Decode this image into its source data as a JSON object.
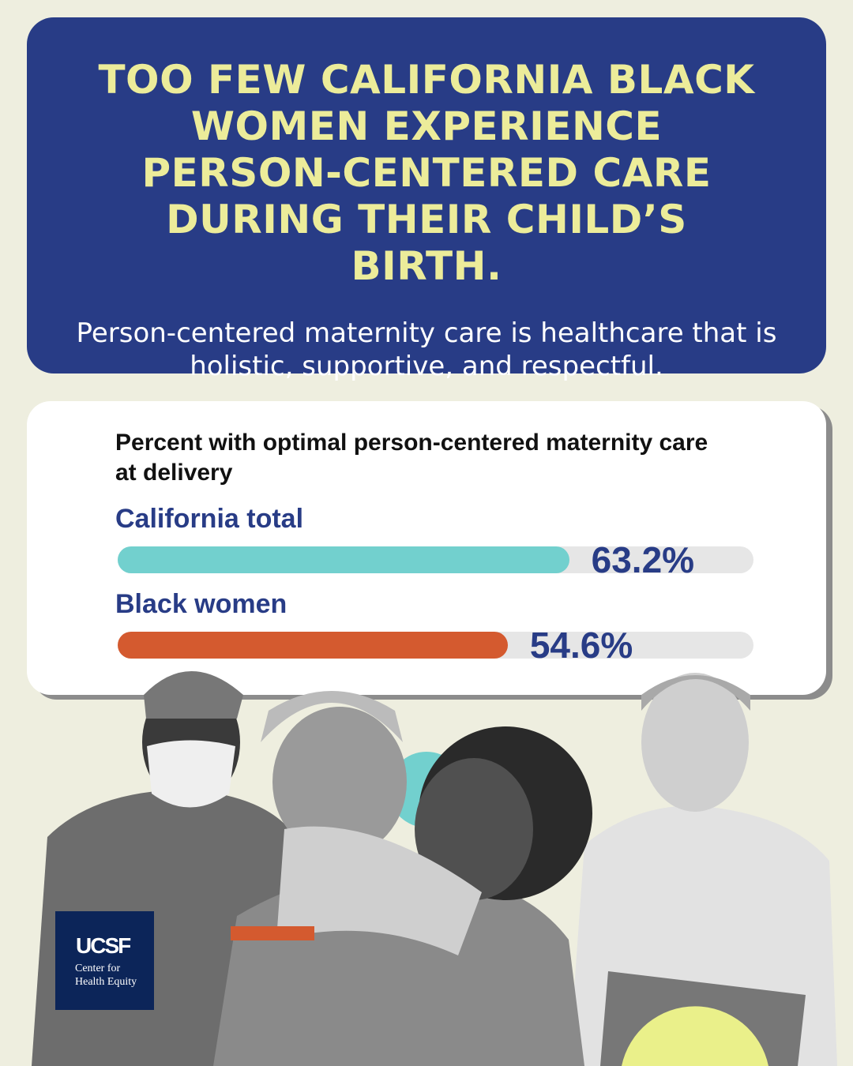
{
  "header": {
    "title": "TOO FEW CALIFORNIA BLACK WOMEN EXPERIENCE PERSON-CENTERED CARE DURING THEIR CHILD’S BIRTH.",
    "subtitle": "Person-centered maternity care is healthcare that is holistic, supportive, and respectful."
  },
  "chart_data": {
    "type": "bar",
    "orientation": "horizontal",
    "title": "Percent with optimal person-centered maternity care at delivery",
    "categories": [
      "California total",
      "Black women"
    ],
    "values": [
      63.2,
      54.6
    ],
    "value_labels": [
      "63.2%",
      "54.6%"
    ],
    "colors": [
      "#72d0ce",
      "#d45a2f"
    ],
    "track_color": "#e6e6e6",
    "xlim": [
      0,
      89
    ],
    "grid": false
  },
  "logo": {
    "mark": "UCSF",
    "text": "Center for Health Equity"
  },
  "colors": {
    "header_bg": "#283c86",
    "title": "#ecec9a",
    "background": "#eeeedf",
    "accent_yellow": "#eaf08a"
  }
}
